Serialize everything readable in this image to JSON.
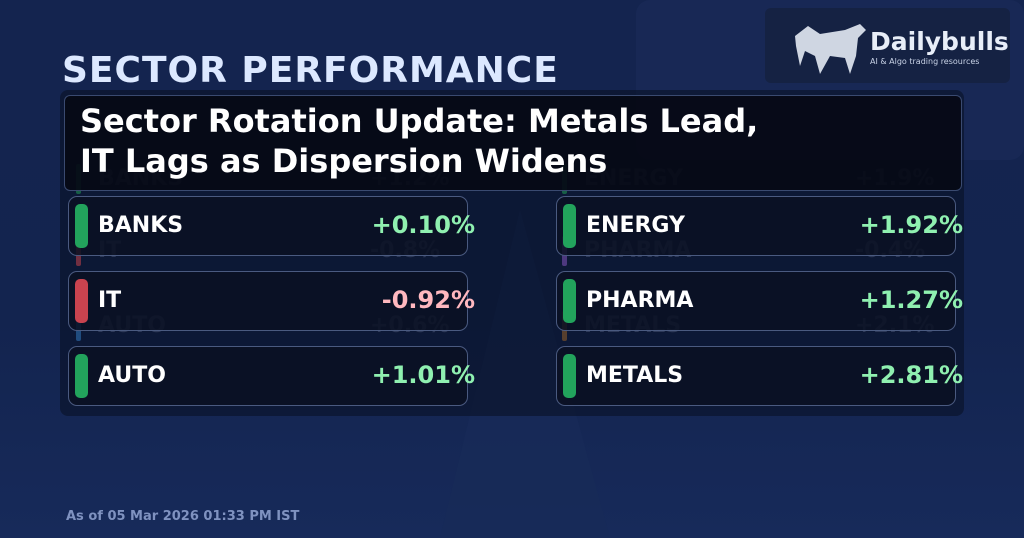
{
  "brand": {
    "name": "Dailybulls",
    "tagline": "AI & Algo trading resources"
  },
  "title": "SECTOR PERFORMANCE",
  "headline": [
    "Sector Rotation Update: Metals Lead,",
    "IT Lags as Dispersion Widens"
  ],
  "ghost_rows": [
    {
      "name": "BANKS",
      "change": "+1.2%",
      "color": "#1f8f52"
    },
    {
      "name": "IT",
      "change": "-0.8%",
      "color": "#b8404a"
    },
    {
      "name": "AUTO",
      "change": "+0.6%",
      "color": "#2f6fb0"
    },
    {
      "name": "ENERGY",
      "change": "+1.9%",
      "color": "#1f8f52"
    },
    {
      "name": "PHARMA",
      "change": "-0.4%",
      "color": "#7a4fb0"
    },
    {
      "name": "METALS",
      "change": "+2.1%",
      "color": "#8a5a2a"
    }
  ],
  "cards": [
    {
      "name": "BANKS",
      "change": "+0.10%",
      "color": "#22a35c",
      "text_color": "#8ff0b0"
    },
    {
      "name": "IT",
      "change": "-0.92%",
      "color": "#c9434f",
      "text_color": "#ffb8bf"
    },
    {
      "name": "AUTO",
      "change": "+1.01%",
      "color": "#22a35c",
      "text_color": "#8ff0b0"
    },
    {
      "name": "ENERGY",
      "change": "+1.92%",
      "color": "#22a35c",
      "text_color": "#8ff0b0"
    },
    {
      "name": "PHARMA",
      "change": "+1.27%",
      "color": "#22a35c",
      "text_color": "#8ff0b0"
    },
    {
      "name": "METALS",
      "change": "+2.81%",
      "color": "#22a35c",
      "text_color": "#8ff0b0"
    }
  ],
  "footer": "As of 05 Mar 2026 01:33 PM IST"
}
